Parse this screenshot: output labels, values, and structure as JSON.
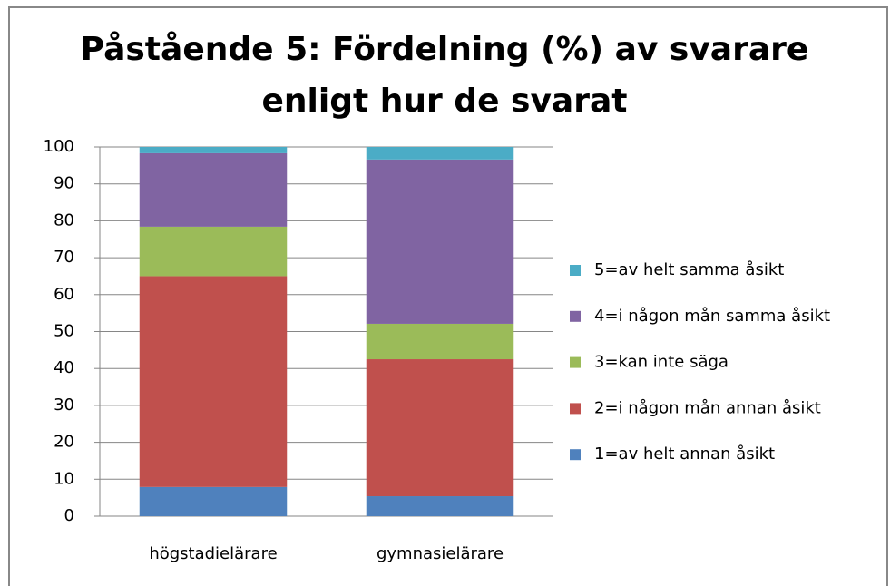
{
  "chart_data": {
    "type": "stacked_bar",
    "title": [
      "Påstående 5: Fördelning (%) av svarare",
      "enligt hur de svarat"
    ],
    "categories": [
      "högstadielärare",
      "gymnasielärare"
    ],
    "series": [
      {
        "name": "1=av helt annan åsikt",
        "color": "#4f81bd",
        "values": [
          7.9,
          5.4
        ]
      },
      {
        "name": "2=i någon mån annan åsikt",
        "color": "#c0504d",
        "values": [
          57.1,
          37.1
        ]
      },
      {
        "name": "3=kan inte säga",
        "color": "#9bbb59",
        "values": [
          13.4,
          9.6
        ]
      },
      {
        "name": "4=i någon mån samma åsikt",
        "color": "#8064a2",
        "values": [
          19.9,
          44.5
        ]
      },
      {
        "name": "5=av helt samma åsikt",
        "color": "#4bacc6",
        "values": [
          1.7,
          3.4
        ]
      }
    ],
    "ylim": [
      0,
      100
    ],
    "yticks": [
      0,
      10,
      20,
      30,
      40,
      50,
      60,
      70,
      80,
      90,
      100
    ],
    "grid": true,
    "legend": "right"
  }
}
